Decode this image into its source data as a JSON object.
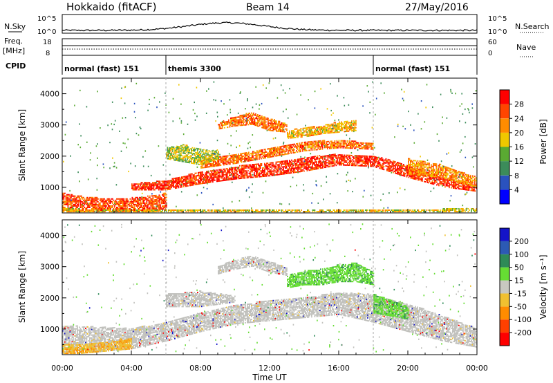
{
  "header": {
    "station": "Hokkaido (fitACF)",
    "beam": "Beam 14",
    "date": "27/May/2016"
  },
  "top_panels": {
    "nsky_label": "N.Sky",
    "nsky_ticks": [
      "10^5",
      "10^0"
    ],
    "nsearch_label": "N.Search",
    "freq_label": "Freq.",
    "freq_unit": "[MHz]",
    "freq_ticks": [
      "18",
      "8"
    ],
    "nave_label": "Nave",
    "nave_ticks": [
      "60",
      "0"
    ],
    "cpid_label": "CPID",
    "cpid_segments": [
      {
        "name": "normal (fast) 151",
        "start_hour": 0,
        "end_hour": 6
      },
      {
        "name": "themis 3300",
        "start_hour": 6,
        "end_hour": 18
      },
      {
        "name": "normal (fast) 151",
        "start_hour": 18,
        "end_hour": 24
      }
    ]
  },
  "colors": {
    "power_scale": [
      "#0000ff",
      "#2a52be",
      "#3c8c5a",
      "#5aaa32",
      "#f0c800",
      "#ff8c00",
      "#ff4500",
      "#ff0000"
    ],
    "velocity_scale": [
      "#1414c8",
      "#2c5ab4",
      "#2e8b57",
      "#66dd33",
      "#c8c8c0",
      "#f0c030",
      "#ff8c00",
      "#ff4000",
      "#ff0000"
    ],
    "ground_scatter": "#c0c0bc"
  },
  "chart_data": [
    {
      "type": "heatmap",
      "name": "power",
      "ylabel": "Slant Range [km]",
      "yticks": [
        1000,
        2000,
        3000,
        4000
      ],
      "ylim": [
        180,
        4500
      ],
      "xlim": [
        0,
        24
      ],
      "colorbar_label": "Power [dB]",
      "colorbar_ticks": [
        "4",
        "8",
        "12",
        "16",
        "20",
        "24",
        "28"
      ],
      "colorbar_range": [
        0,
        32
      ],
      "bands": [
        {
          "hours": [
            0,
            1,
            2,
            3,
            4,
            5,
            6
          ],
          "lo": [
            200,
            200,
            200,
            200,
            200,
            200,
            250
          ],
          "hi": [
            800,
            700,
            650,
            600,
            650,
            700,
            800
          ],
          "level": 26
        },
        {
          "hours": [
            4,
            6,
            8,
            10,
            12,
            14,
            16,
            18,
            20,
            22,
            24
          ],
          "lo": [
            900,
            900,
            1100,
            1250,
            1350,
            1500,
            1700,
            1650,
            1300,
            1000,
            850
          ],
          "hi": [
            1100,
            1200,
            1500,
            1650,
            1800,
            1950,
            2050,
            2000,
            1700,
            1300,
            1050
          ],
          "level": 28
        },
        {
          "hours": [
            8,
            10,
            12,
            14,
            16,
            18
          ],
          "lo": [
            1600,
            1750,
            1950,
            2150,
            2250,
            2200
          ],
          "hi": [
            1900,
            2050,
            2250,
            2450,
            2500,
            2400
          ],
          "level": 24
        },
        {
          "hours": [
            9,
            10,
            11,
            12,
            13
          ],
          "lo": [
            2850,
            2950,
            3000,
            2800,
            2750
          ],
          "hi": [
            3050,
            3250,
            3400,
            3200,
            3000
          ],
          "level": 24
        },
        {
          "hours": [
            13,
            14,
            15,
            16,
            17
          ],
          "lo": [
            2550,
            2600,
            2700,
            2750,
            2800
          ],
          "hi": [
            2800,
            2900,
            2950,
            3100,
            3150
          ],
          "level": 20
        },
        {
          "hours": [
            6,
            7,
            8,
            9
          ],
          "lo": [
            1900,
            1800,
            1700,
            1900
          ],
          "hi": [
            2250,
            2350,
            2200,
            2150
          ],
          "level": 16
        },
        {
          "hours": [
            20,
            21,
            22,
            23,
            24
          ],
          "lo": [
            1400,
            1350,
            1300,
            1100,
            1000
          ],
          "hi": [
            1900,
            1800,
            1700,
            1500,
            1300
          ],
          "level": 22
        },
        {
          "hours": [
            0,
            2,
            4,
            6,
            8,
            10,
            12,
            14,
            16,
            18,
            20,
            22,
            24
          ],
          "lo": [
            200,
            200,
            200,
            200,
            200,
            200,
            200,
            200,
            200,
            200,
            200,
            200,
            200
          ],
          "hi": [
            300,
            280,
            260,
            250,
            250,
            250,
            250,
            250,
            260,
            260,
            280,
            290,
            300
          ],
          "level": 18
        }
      ]
    },
    {
      "type": "heatmap",
      "name": "velocity",
      "ylabel": "Slant Range [km]",
      "yticks": [
        1000,
        2000,
        3000,
        4000
      ],
      "ylim": [
        180,
        4500
      ],
      "xlim": [
        0,
        24
      ],
      "xticks": [
        "00:00",
        "04:00",
        "08:00",
        "12:00",
        "16:00",
        "20:00",
        "00:00"
      ],
      "xlabel": "Time UT",
      "colorbar_label": "Velocity [m s⁻¹]",
      "colorbar_ticks": [
        "-200",
        "-100",
        "-50",
        "-15",
        "15",
        "50",
        "100",
        "200"
      ],
      "bands": [
        {
          "hours": [
            0,
            2,
            4,
            6,
            8,
            10,
            12,
            14,
            16,
            18,
            20,
            22,
            24
          ],
          "lo": [
            200,
            250,
            350,
            600,
            900,
            1150,
            1250,
            1350,
            1450,
            1200,
            900,
            600,
            400
          ],
          "hi": [
            1100,
            1050,
            1000,
            1200,
            1500,
            1750,
            1900,
            2000,
            2150,
            2100,
            1800,
            1400,
            1000
          ],
          "level": 0
        },
        {
          "hours": [
            9,
            10,
            11,
            12,
            13
          ],
          "lo": [
            2750,
            2900,
            3000,
            2800,
            2700
          ],
          "hi": [
            3000,
            3200,
            3350,
            3150,
            2950
          ],
          "level": 0
        },
        {
          "hours": [
            13,
            14,
            15,
            16,
            17,
            18
          ],
          "lo": [
            2300,
            2400,
            2400,
            2500,
            2500,
            2400
          ],
          "hi": [
            2700,
            2850,
            2900,
            3050,
            3100,
            2800
          ],
          "level": 40
        },
        {
          "hours": [
            18,
            19,
            20
          ],
          "lo": [
            1500,
            1400,
            1300
          ],
          "hi": [
            2100,
            1900,
            1700
          ],
          "level": 40
        },
        {
          "hours": [
            0,
            1,
            2,
            3,
            4
          ],
          "lo": [
            200,
            200,
            250,
            300,
            350
          ],
          "hi": [
            500,
            500,
            550,
            600,
            700
          ],
          "level": -30
        },
        {
          "hours": [
            6,
            8,
            10
          ],
          "lo": [
            1700,
            1700,
            1850
          ],
          "hi": [
            2100,
            2200,
            2050
          ],
          "level": 0
        }
      ]
    }
  ]
}
